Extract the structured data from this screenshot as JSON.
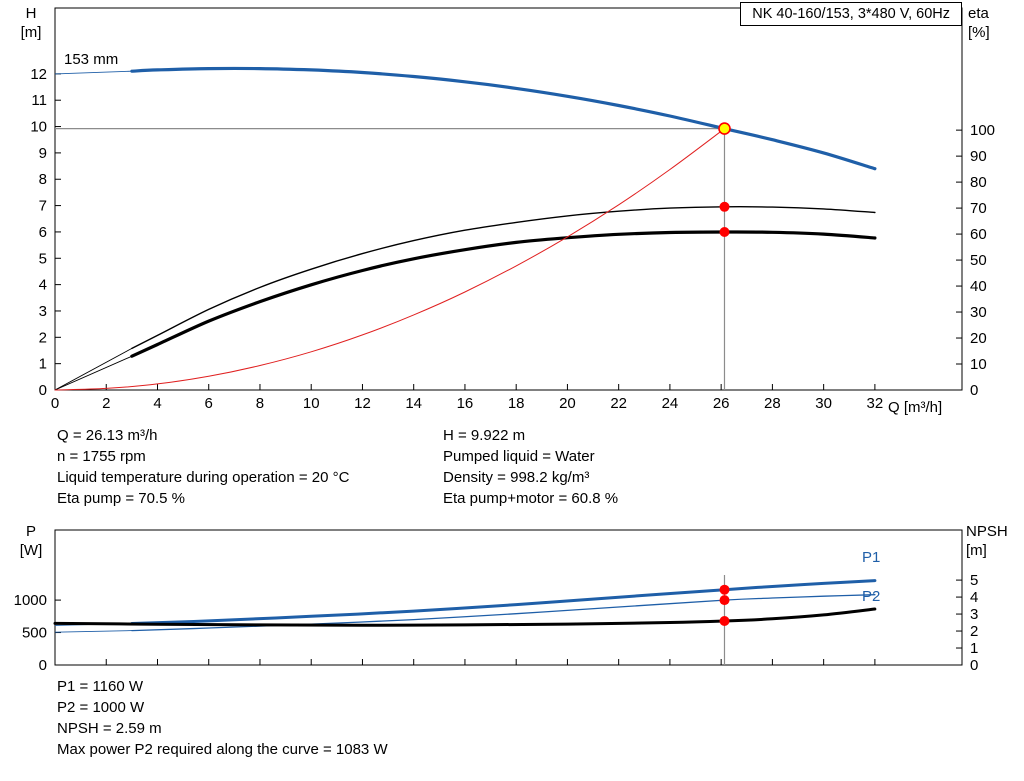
{
  "header": {
    "title_box": "NK 40-160/153, 3*480 V, 60Hz"
  },
  "labels": {
    "top_left_axis": [
      "H",
      "[m]"
    ],
    "top_right_axis": [
      "eta",
      "[%]"
    ],
    "top_x_axis": "Q [m³/h]",
    "impeller": "153 mm",
    "bottom_left_axis": [
      "P",
      "[W]"
    ],
    "bottom_right_axis": [
      "NPSH",
      "[m]"
    ],
    "p1": "P1",
    "p2": "P2"
  },
  "info_top_left": [
    "Q = 26.13 m³/h",
    "n = 1755 rpm",
    "Liquid temperature during operation = 20 °C",
    "Eta pump = 70.5 %"
  ],
  "info_top_right": [
    "H = 9.922 m",
    "Pumped liquid = Water",
    "Density = 998.2 kg/m³",
    "Eta pump+motor = 60.8 %"
  ],
  "info_bottom": [
    "P1 = 1160 W",
    "P2 = 1000 W",
    "NPSH = 2.59 m",
    "Max power P2 required along the curve = 1083 W"
  ],
  "colors": {
    "curve_blue": "#1f5fa8",
    "curve_black": "#000000",
    "curve_red": "#e02020",
    "marker_red": "#ff0000",
    "marker_yellow": "#ffff00",
    "guide_gray": "#8c8c8c"
  },
  "chart_data": [
    {
      "id": "top",
      "type": "line",
      "title": "NK 40-160/153, 3*480 V, 60Hz",
      "x_axis": {
        "label": "Q [m³/h]",
        "min": 0,
        "max": 35.4,
        "ticks": [
          0,
          2,
          4,
          6,
          8,
          10,
          12,
          14,
          16,
          18,
          20,
          22,
          24,
          26,
          28,
          30,
          32
        ]
      },
      "left_axis": {
        "label": "H [m]",
        "min": 0,
        "max": 14.5,
        "ticks": [
          0,
          1,
          2,
          3,
          4,
          5,
          6,
          7,
          8,
          9,
          10,
          11,
          12
        ]
      },
      "right_axis": {
        "label": "eta [%]",
        "min": 0,
        "max": 147,
        "ticks": [
          0,
          10,
          20,
          30,
          40,
          50,
          60,
          70,
          80,
          90,
          100
        ]
      },
      "series": [
        {
          "name": "head-curve-153mm",
          "axis": "left",
          "color": "curve_blue",
          "width": 3.2,
          "lead_in": [
            [
              0,
              12.0
            ],
            [
              3,
              12.1
            ]
          ],
          "points": [
            [
              3,
              12.1
            ],
            [
              4,
              12.15
            ],
            [
              6,
              12.2
            ],
            [
              8,
              12.2
            ],
            [
              10,
              12.15
            ],
            [
              12,
              12.05
            ],
            [
              14,
              11.9
            ],
            [
              16,
              11.7
            ],
            [
              18,
              11.45
            ],
            [
              20,
              11.15
            ],
            [
              22,
              10.8
            ],
            [
              24,
              10.4
            ],
            [
              26.13,
              9.92
            ],
            [
              28,
              9.5
            ],
            [
              30,
              9.0
            ],
            [
              32,
              8.4
            ]
          ]
        },
        {
          "name": "eta-pump-curve",
          "axis": "right",
          "color": "curve_black",
          "width": 1.4,
          "lead_in": [
            [
              0,
              0
            ],
            [
              3,
              16
            ]
          ],
          "points": [
            [
              3,
              16
            ],
            [
              4,
              21
            ],
            [
              6,
              31
            ],
            [
              8,
              39.5
            ],
            [
              10,
              46.5
            ],
            [
              12,
              52.5
            ],
            [
              14,
              57.5
            ],
            [
              16,
              61.5
            ],
            [
              18,
              64.5
            ],
            [
              20,
              67
            ],
            [
              22,
              68.8
            ],
            [
              24,
              70
            ],
            [
              26.13,
              70.5
            ],
            [
              28,
              70.4
            ],
            [
              30,
              69.7
            ],
            [
              32,
              68.3
            ]
          ]
        },
        {
          "name": "eta-pump-motor-curve",
          "axis": "right",
          "color": "curve_black",
          "width": 3.2,
          "lead_in": [
            [
              0,
              0
            ],
            [
              3,
              13
            ]
          ],
          "points": [
            [
              3,
              13
            ],
            [
              4,
              17.5
            ],
            [
              6,
              26.5
            ],
            [
              8,
              34
            ],
            [
              10,
              40.5
            ],
            [
              12,
              46
            ],
            [
              14,
              50.5
            ],
            [
              16,
              54
            ],
            [
              18,
              56.8
            ],
            [
              20,
              58.6
            ],
            [
              22,
              59.9
            ],
            [
              24,
              60.6
            ],
            [
              26.13,
              60.8
            ],
            [
              28,
              60.7
            ],
            [
              30,
              60
            ],
            [
              32,
              58.5
            ]
          ]
        },
        {
          "name": "system-curve",
          "axis": "left",
          "color": "curve_red",
          "width": 1,
          "points": [
            [
              0,
              0
            ],
            [
              2,
              0.06
            ],
            [
              4,
              0.23
            ],
            [
              6,
              0.52
            ],
            [
              8,
              0.93
            ],
            [
              10,
              1.45
            ],
            [
              12,
              2.09
            ],
            [
              14,
              2.85
            ],
            [
              16,
              3.72
            ],
            [
              18,
              4.71
            ],
            [
              20,
              5.81
            ],
            [
              22,
              7.03
            ],
            [
              24,
              8.37
            ],
            [
              26.13,
              9.92
            ]
          ]
        }
      ],
      "guides": {
        "duty_q": 26.13,
        "duty_h": 9.922
      },
      "markers": [
        {
          "name": "duty-point",
          "axis": "left",
          "q": 26.13,
          "v": 9.922,
          "fill": "marker_yellow",
          "stroke": "marker_red",
          "r": 5.5
        },
        {
          "name": "eta-pump-point",
          "axis": "right",
          "q": 26.13,
          "v": 70.5,
          "fill": "marker_red",
          "r": 5
        },
        {
          "name": "eta-pump-motor-point",
          "axis": "right",
          "q": 26.13,
          "v": 60.8,
          "fill": "marker_red",
          "r": 5
        }
      ]
    },
    {
      "id": "bottom",
      "type": "line",
      "x_axis": {
        "label": "",
        "min": 0,
        "max": 35.4,
        "show_labels": false,
        "ticks": [
          0,
          2,
          4,
          6,
          8,
          10,
          12,
          14,
          16,
          18,
          20,
          22,
          24,
          26,
          28,
          30,
          32
        ]
      },
      "left_axis": {
        "label": "P [W]",
        "min": 0,
        "max": 2080,
        "ticks": [
          0,
          500,
          1000
        ]
      },
      "right_axis": {
        "label": "NPSH [m]",
        "min": 0,
        "max": 7.95,
        "ticks": [
          0,
          1,
          2,
          3,
          4,
          5
        ]
      },
      "series": [
        {
          "name": "p1-curve",
          "axis": "left",
          "color": "curve_blue",
          "width": 3,
          "lead_in": [
            [
              0,
              610
            ],
            [
              3,
              640
            ]
          ],
          "points": [
            [
              3,
              640
            ],
            [
              6,
              680
            ],
            [
              10,
              750
            ],
            [
              14,
              830
            ],
            [
              18,
              930
            ],
            [
              22,
              1045
            ],
            [
              26.13,
              1160
            ],
            [
              28,
              1210
            ],
            [
              30,
              1258
            ],
            [
              32,
              1300
            ]
          ]
        },
        {
          "name": "p2-curve",
          "axis": "left",
          "color": "curve_blue",
          "width": 1.3,
          "lead_in": [
            [
              0,
              505
            ],
            [
              3,
              530
            ]
          ],
          "points": [
            [
              3,
              530
            ],
            [
              6,
              570
            ],
            [
              10,
              630
            ],
            [
              14,
              700
            ],
            [
              18,
              790
            ],
            [
              22,
              893
            ],
            [
              26.13,
              1000
            ],
            [
              28,
              1032
            ],
            [
              30,
              1060
            ],
            [
              32,
              1083
            ]
          ]
        },
        {
          "name": "npsh-curve",
          "axis": "right",
          "color": "curve_black",
          "width": 3,
          "points": [
            [
              0,
              2.45
            ],
            [
              4,
              2.4
            ],
            [
              8,
              2.36
            ],
            [
              12,
              2.34
            ],
            [
              16,
              2.36
            ],
            [
              20,
              2.41
            ],
            [
              24,
              2.5
            ],
            [
              26.13,
              2.59
            ],
            [
              28,
              2.72
            ],
            [
              30,
              2.95
            ],
            [
              32,
              3.3
            ]
          ]
        }
      ],
      "guides": {
        "duty_q": 26.13
      },
      "markers": [
        {
          "name": "p1-point",
          "axis": "left",
          "q": 26.13,
          "v": 1160,
          "fill": "marker_red",
          "r": 5
        },
        {
          "name": "p2-point",
          "axis": "left",
          "q": 26.13,
          "v": 1000,
          "fill": "marker_red",
          "r": 5
        },
        {
          "name": "npsh-point",
          "axis": "right",
          "q": 26.13,
          "v": 2.59,
          "fill": "marker_red",
          "r": 5
        }
      ]
    }
  ]
}
